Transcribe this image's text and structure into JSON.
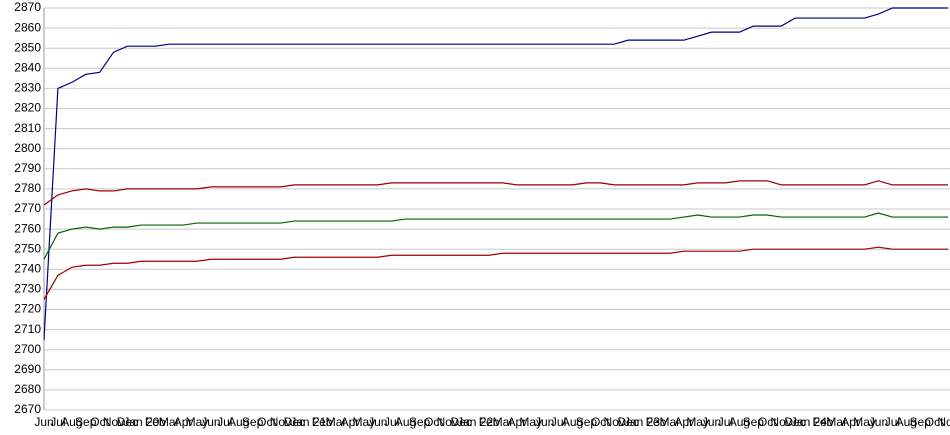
{
  "chart_data": {
    "type": "line",
    "categories": [
      "Jun",
      "Jul",
      "Aug",
      "Sep",
      "Oct",
      "Nov",
      "Dec",
      "Jan 20",
      "Feb",
      "Mar",
      "Apr",
      "May",
      "Jun",
      "Jul",
      "Aug",
      "Sep",
      "Oct",
      "Nov",
      "Dec",
      "Jan 21",
      "Feb",
      "Mar",
      "Apr",
      "May",
      "Jun",
      "Jul",
      "Aug",
      "Sep",
      "Oct",
      "Nov",
      "Dec",
      "Jan 22",
      "Feb",
      "Mar",
      "Apr",
      "May",
      "Jun",
      "Jul",
      "Aug",
      "Sep",
      "Oct",
      "Nov",
      "Dec",
      "Jan 23",
      "Feb",
      "Mar",
      "Apr",
      "May",
      "Jun",
      "Jul",
      "Aug",
      "Sep",
      "Oct",
      "Nov",
      "Dec",
      "Jan 24",
      "Feb",
      "Mar",
      "Apr",
      "May",
      "Jun",
      "Jul",
      "Aug",
      "Sep",
      "Oct",
      "Nov"
    ],
    "series": [
      {
        "color": "#000080",
        "values": [
          2705,
          2830,
          2833,
          2837,
          2838,
          2848,
          2851,
          2851,
          2851,
          2852,
          2852,
          2852,
          2852,
          2852,
          2852,
          2852,
          2852,
          2852,
          2852,
          2852,
          2852,
          2852,
          2852,
          2852,
          2852,
          2852,
          2852,
          2852,
          2852,
          2852,
          2852,
          2852,
          2852,
          2852,
          2852,
          2852,
          2852,
          2852,
          2852,
          2852,
          2852,
          2852,
          2854,
          2854,
          2854,
          2854,
          2854,
          2856,
          2858,
          2858,
          2858,
          2861,
          2861,
          2861,
          2865,
          2865,
          2865,
          2865,
          2865,
          2865,
          2867,
          2870,
          2870,
          2870,
          2870,
          2870
        ]
      },
      {
        "color": "#990000",
        "values": [
          2772,
          2777,
          2779,
          2780,
          2779,
          2779,
          2780,
          2780,
          2780,
          2780,
          2780,
          2780,
          2781,
          2781,
          2781,
          2781,
          2781,
          2781,
          2782,
          2782,
          2782,
          2782,
          2782,
          2782,
          2782,
          2783,
          2783,
          2783,
          2783,
          2783,
          2783,
          2783,
          2783,
          2783,
          2782,
          2782,
          2782,
          2782,
          2782,
          2783,
          2783,
          2782,
          2782,
          2782,
          2782,
          2782,
          2782,
          2783,
          2783,
          2783,
          2784,
          2784,
          2784,
          2782,
          2782,
          2782,
          2782,
          2782,
          2782,
          2782,
          2784,
          2782,
          2782,
          2782,
          2782,
          2782
        ]
      },
      {
        "color": "#006400",
        "values": [
          2745,
          2758,
          2760,
          2761,
          2760,
          2761,
          2761,
          2762,
          2762,
          2762,
          2762,
          2763,
          2763,
          2763,
          2763,
          2763,
          2763,
          2763,
          2764,
          2764,
          2764,
          2764,
          2764,
          2764,
          2764,
          2764,
          2765,
          2765,
          2765,
          2765,
          2765,
          2765,
          2765,
          2765,
          2765,
          2765,
          2765,
          2765,
          2765,
          2765,
          2765,
          2765,
          2765,
          2765,
          2765,
          2765,
          2766,
          2767,
          2766,
          2766,
          2766,
          2767,
          2767,
          2766,
          2766,
          2766,
          2766,
          2766,
          2766,
          2766,
          2768,
          2766,
          2766,
          2766,
          2766,
          2766
        ]
      },
      {
        "color": "#990000",
        "values": [
          2725,
          2737,
          2741,
          2742,
          2742,
          2743,
          2743,
          2744,
          2744,
          2744,
          2744,
          2744,
          2745,
          2745,
          2745,
          2745,
          2745,
          2745,
          2746,
          2746,
          2746,
          2746,
          2746,
          2746,
          2746,
          2747,
          2747,
          2747,
          2747,
          2747,
          2747,
          2747,
          2747,
          2748,
          2748,
          2748,
          2748,
          2748,
          2748,
          2748,
          2748,
          2748,
          2748,
          2748,
          2748,
          2748,
          2749,
          2749,
          2749,
          2749,
          2749,
          2750,
          2750,
          2750,
          2750,
          2750,
          2750,
          2750,
          2750,
          2750,
          2751,
          2750,
          2750,
          2750,
          2750,
          2750
        ]
      }
    ],
    "ylim": [
      2670,
      2870
    ],
    "yticks": [
      2670,
      2680,
      2690,
      2700,
      2710,
      2720,
      2730,
      2740,
      2750,
      2760,
      2770,
      2780,
      2790,
      2800,
      2810,
      2820,
      2830,
      2840,
      2850,
      2860,
      2870
    ],
    "grid": true
  }
}
